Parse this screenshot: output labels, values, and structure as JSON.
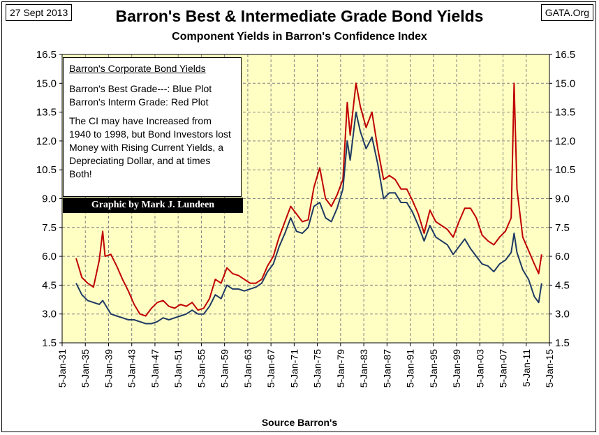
{
  "header": {
    "date": "27 Sept 2013",
    "source_site": "GATA.Org",
    "title": "Barron's Best & Intermediate Grade Bond Yields",
    "subtitle": "Component Yields in Barron's Confidence Index"
  },
  "note": {
    "heading": "Barron's Corporate Bond Yields",
    "best_line": "Barron's Best Grade---: Blue Plot",
    "interm_line": "Barron's Interm Grade: Red Plot",
    "body": "The CI may have Increased from 1940 to 1998, but Bond Investors lost Money with Rising Current Yields, a Depreciating Dollar, and at times Both!",
    "credit": "Graphic by Mark J. Lundeen"
  },
  "colors": {
    "plot_background": "#ffffc4",
    "grid": "#808080",
    "best_grade": "#1f3a63",
    "interm_grade": "#c00000"
  },
  "chart_data": {
    "type": "line",
    "title": "Barron's Best & Intermediate Grade Bond Yields",
    "subtitle": "Component Yields in Barron's Confidence Index",
    "xlabel": "Source Barron's",
    "ylabel": "",
    "x_ticks": [
      "5-Jan-31",
      "5-Jan-35",
      "5-Jan-39",
      "5-Jan-43",
      "5-Jan-47",
      "5-Jan-51",
      "5-Jan-55",
      "5-Jan-59",
      "5-Jan-63",
      "5-Jan-67",
      "5-Jan-71",
      "5-Jan-75",
      "5-Jan-79",
      "5-Jan-83",
      "5-Jan-87",
      "5-Jan-91",
      "5-Jan-95",
      "5-Jan-99",
      "5-Jan-03",
      "5-Jan-07",
      "5-Jan-11",
      "5-Jan-15"
    ],
    "y_ticks": [
      "1.5",
      "3.0",
      "4.5",
      "6.0",
      "7.5",
      "9.0",
      "10.5",
      "12.0",
      "13.5",
      "15.0",
      "16.5"
    ],
    "xlim": [
      "1931-01-05",
      "2015-01-05"
    ],
    "ylim": [
      1.5,
      16.5
    ],
    "grid": "vertical and horizontal dashed",
    "y_axis_both_sides": true,
    "series": [
      {
        "name": "Barron's Best Grade",
        "color": "#1f3a63",
        "x": [
          "1933-06-01",
          "1934-06-01",
          "1935-06-01",
          "1936-06-01",
          "1937-06-01",
          "1938-01-01",
          "1938-06-01",
          "1939-06-01",
          "1940-06-01",
          "1941-06-01",
          "1942-06-01",
          "1943-06-01",
          "1944-06-01",
          "1945-06-01",
          "1946-06-01",
          "1947-06-01",
          "1948-06-01",
          "1949-06-01",
          "1950-06-01",
          "1951-06-01",
          "1952-06-01",
          "1953-06-01",
          "1954-06-01",
          "1955-06-01",
          "1956-06-01",
          "1957-06-01",
          "1958-06-01",
          "1959-06-01",
          "1960-06-01",
          "1961-06-01",
          "1962-06-01",
          "1963-06-01",
          "1964-06-01",
          "1965-06-01",
          "1966-06-01",
          "1967-06-01",
          "1968-06-01",
          "1969-06-01",
          "1970-06-01",
          "1971-06-01",
          "1972-06-01",
          "1973-06-01",
          "1974-06-01",
          "1975-06-01",
          "1976-06-01",
          "1977-06-01",
          "1978-06-01",
          "1979-06-01",
          "1980-03-01",
          "1980-09-01",
          "1981-09-01",
          "1982-06-01",
          "1983-06-01",
          "1984-06-01",
          "1985-06-01",
          "1986-06-01",
          "1987-06-01",
          "1988-06-01",
          "1989-06-01",
          "1990-06-01",
          "1991-06-01",
          "1992-06-01",
          "1993-06-01",
          "1994-06-01",
          "1995-06-01",
          "1996-06-01",
          "1997-06-01",
          "1998-06-01",
          "1999-06-01",
          "2000-06-01",
          "2001-06-01",
          "2002-06-01",
          "2003-06-01",
          "2004-06-01",
          "2005-06-01",
          "2006-06-01",
          "2007-06-01",
          "2008-06-01",
          "2008-12-01",
          "2009-06-01",
          "2010-06-01",
          "2011-06-01",
          "2012-06-01",
          "2013-03-01",
          "2013-09-01"
        ],
        "values": [
          4.6,
          4.0,
          3.7,
          3.6,
          3.5,
          3.7,
          3.5,
          3.0,
          2.9,
          2.8,
          2.7,
          2.7,
          2.6,
          2.5,
          2.5,
          2.6,
          2.8,
          2.7,
          2.8,
          2.9,
          3.0,
          3.2,
          3.0,
          3.0,
          3.4,
          4.0,
          3.8,
          4.5,
          4.3,
          4.3,
          4.2,
          4.3,
          4.4,
          4.6,
          5.2,
          5.6,
          6.5,
          7.2,
          8.0,
          7.3,
          7.2,
          7.5,
          8.6,
          8.8,
          8.0,
          7.8,
          8.5,
          9.5,
          12.0,
          11.0,
          13.5,
          12.5,
          11.6,
          12.2,
          10.8,
          9.0,
          9.3,
          9.3,
          8.8,
          8.8,
          8.3,
          7.6,
          6.8,
          7.6,
          7.0,
          6.8,
          6.6,
          6.1,
          6.5,
          6.9,
          6.4,
          6.0,
          5.6,
          5.5,
          5.2,
          5.6,
          5.8,
          6.2,
          7.2,
          6.2,
          5.3,
          4.8,
          3.9,
          3.6,
          4.6
        ]
      },
      {
        "name": "Barron's Interm Grade",
        "color": "#c00000",
        "x": [
          "1933-06-01",
          "1934-06-01",
          "1935-06-01",
          "1936-06-01",
          "1937-06-01",
          "1938-01-01",
          "1938-06-01",
          "1939-06-01",
          "1940-06-01",
          "1941-06-01",
          "1942-06-01",
          "1943-06-01",
          "1944-06-01",
          "1945-06-01",
          "1946-06-01",
          "1947-06-01",
          "1948-06-01",
          "1949-06-01",
          "1950-06-01",
          "1951-06-01",
          "1952-06-01",
          "1953-06-01",
          "1954-06-01",
          "1955-06-01",
          "1956-06-01",
          "1957-06-01",
          "1958-06-01",
          "1959-06-01",
          "1960-06-01",
          "1961-06-01",
          "1962-06-01",
          "1963-06-01",
          "1964-06-01",
          "1965-06-01",
          "1966-06-01",
          "1967-06-01",
          "1968-06-01",
          "1969-06-01",
          "1970-06-01",
          "1971-06-01",
          "1972-06-01",
          "1973-06-01",
          "1974-06-01",
          "1975-06-01",
          "1976-06-01",
          "1977-06-01",
          "1978-06-01",
          "1979-06-01",
          "1980-03-01",
          "1980-09-01",
          "1981-09-01",
          "1982-06-01",
          "1983-06-01",
          "1984-06-01",
          "1985-06-01",
          "1986-06-01",
          "1987-06-01",
          "1988-06-01",
          "1989-06-01",
          "1990-06-01",
          "1991-06-01",
          "1992-06-01",
          "1993-06-01",
          "1994-06-01",
          "1995-06-01",
          "1996-06-01",
          "1997-06-01",
          "1998-06-01",
          "1999-06-01",
          "2000-06-01",
          "2001-06-01",
          "2002-06-01",
          "2003-06-01",
          "2004-06-01",
          "2005-06-01",
          "2006-06-01",
          "2007-06-01",
          "2008-06-01",
          "2008-12-01",
          "2009-06-01",
          "2010-06-01",
          "2011-06-01",
          "2012-06-01",
          "2013-03-01",
          "2013-09-01"
        ],
        "values": [
          5.9,
          4.9,
          4.6,
          4.4,
          5.8,
          7.3,
          6.0,
          6.1,
          5.5,
          4.8,
          4.2,
          3.5,
          3.0,
          2.9,
          3.3,
          3.6,
          3.7,
          3.4,
          3.3,
          3.5,
          3.4,
          3.6,
          3.2,
          3.3,
          3.8,
          4.8,
          4.6,
          5.4,
          5.1,
          5.0,
          4.8,
          4.6,
          4.6,
          4.8,
          5.5,
          6.0,
          7.0,
          7.8,
          8.6,
          8.2,
          7.8,
          7.9,
          9.6,
          10.6,
          9.0,
          8.6,
          9.2,
          10.0,
          14.0,
          12.3,
          15.0,
          13.8,
          12.7,
          13.5,
          11.6,
          10.0,
          10.2,
          10.0,
          9.5,
          9.5,
          8.9,
          8.2,
          7.2,
          8.4,
          7.8,
          7.6,
          7.4,
          7.0,
          7.8,
          8.5,
          8.5,
          8.0,
          7.1,
          6.8,
          6.6,
          7.0,
          7.3,
          8.0,
          15.0,
          9.5,
          7.0,
          6.3,
          5.6,
          5.1,
          6.1
        ]
      }
    ]
  }
}
